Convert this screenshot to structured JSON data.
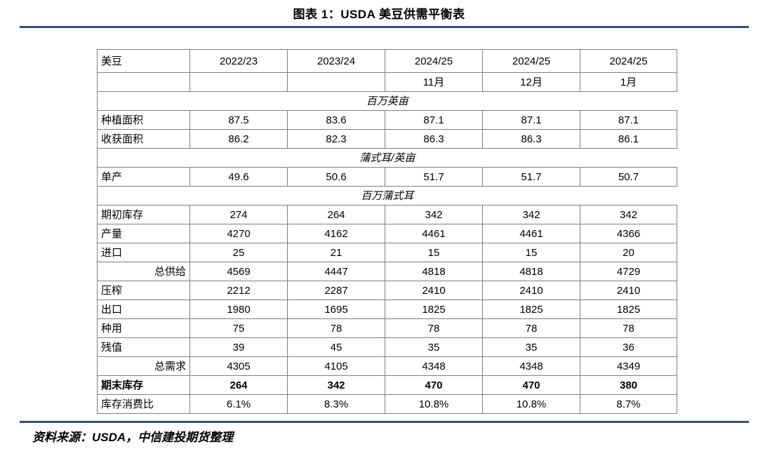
{
  "title": "图表 1：USDA 美豆供需平衡表",
  "source_note": "资料来源：USDA，中信建投期货整理",
  "colors": {
    "rule_blue": "#2B4E87",
    "table_border": "#7F7F7F",
    "text": "#000000"
  },
  "table": {
    "corner_label": "美豆",
    "year_headers": [
      "2022/23",
      "2023/24",
      "2024/25",
      "2024/25",
      "2024/25"
    ],
    "month_headers": [
      "",
      "",
      "11月",
      "12月",
      "1月"
    ],
    "rows": [
      {
        "type": "unit",
        "label": "百万英亩"
      },
      {
        "type": "data",
        "label": "种植面积",
        "values": [
          "87.5",
          "83.6",
          "87.1",
          "87.1",
          "87.1"
        ]
      },
      {
        "type": "data",
        "label": "收获面积",
        "values": [
          "86.2",
          "82.3",
          "86.3",
          "86.3",
          "86.1"
        ]
      },
      {
        "type": "unit",
        "label": "蒲式耳/英亩"
      },
      {
        "type": "data",
        "label": "单产",
        "values": [
          "49.6",
          "50.6",
          "51.7",
          "51.7",
          "50.7"
        ]
      },
      {
        "type": "unit",
        "label": "百万蒲式耳"
      },
      {
        "type": "data",
        "label": "期初库存",
        "values": [
          "274",
          "264",
          "342",
          "342",
          "342"
        ]
      },
      {
        "type": "data",
        "label": "产量",
        "values": [
          "4270",
          "4162",
          "4461",
          "4461",
          "4366"
        ]
      },
      {
        "type": "data",
        "label": "进口",
        "values": [
          "25",
          "21",
          "15",
          "15",
          "20"
        ]
      },
      {
        "type": "total",
        "label": "总供给",
        "values": [
          "4569",
          "4447",
          "4818",
          "4818",
          "4729"
        ]
      },
      {
        "type": "data",
        "label": "压榨",
        "values": [
          "2212",
          "2287",
          "2410",
          "2410",
          "2410"
        ]
      },
      {
        "type": "data",
        "label": "出口",
        "values": [
          "1980",
          "1695",
          "1825",
          "1825",
          "1825"
        ]
      },
      {
        "type": "data",
        "label": "种用",
        "values": [
          "75",
          "78",
          "78",
          "78",
          "78"
        ]
      },
      {
        "type": "data",
        "label": "残值",
        "values": [
          "39",
          "45",
          "35",
          "35",
          "36"
        ]
      },
      {
        "type": "total",
        "label": "总需求",
        "values": [
          "4305",
          "4105",
          "4348",
          "4348",
          "4349"
        ]
      },
      {
        "type": "bold",
        "label": "期末库存",
        "values": [
          "264",
          "342",
          "470",
          "470",
          "380"
        ]
      },
      {
        "type": "data",
        "label": "库存消费比",
        "values": [
          "6.1%",
          "8.3%",
          "10.8%",
          "10.8%",
          "8.7%"
        ]
      }
    ]
  }
}
